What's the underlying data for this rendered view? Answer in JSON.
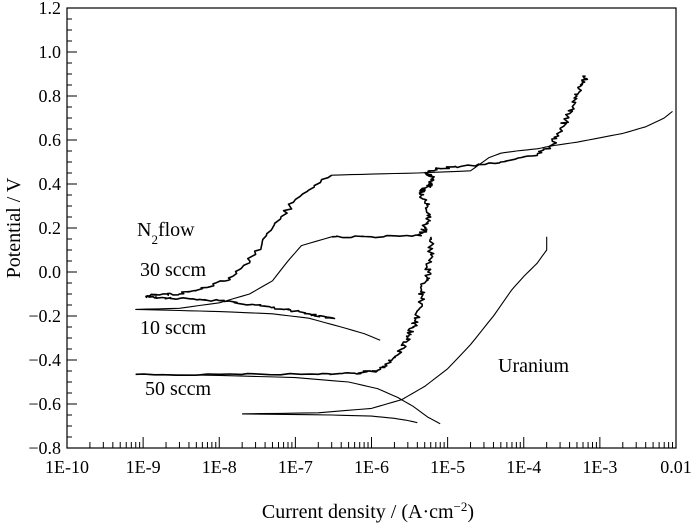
{
  "chart_data": {
    "type": "line",
    "xlabel": "Current density / (A·cm−2)",
    "xlabel_main": "Current density / (A·cm",
    "xlabel_sup": "−2",
    "xlabel_tail": ")",
    "ylabel": "Potential / V",
    "x_scale": "log",
    "xlim": [
      1e-10,
      0.01
    ],
    "ylim": [
      -0.8,
      1.2
    ],
    "x_ticks": [
      "1E-10",
      "1E-9",
      "1E-8",
      "1E-7",
      "1E-6",
      "1E-5",
      "1E-4",
      "1E-3",
      "0.01"
    ],
    "y_ticks": [
      "−0.8",
      "−0.6",
      "−0.4",
      "−0.2",
      "0.0",
      "0.2",
      "0.4",
      "0.6",
      "0.8",
      "1.0",
      "1.2"
    ],
    "grid": false,
    "legend": "none",
    "annotations": {
      "n2flow_main": "N",
      "n2flow_sub": "2",
      "n2flow_tail": "flow",
      "s30": "30 sccm",
      "s10": "10 sccm",
      "s50": "50 sccm",
      "uranium": "Uranium"
    },
    "series": [
      {
        "label_ref": "30 sccm",
        "noisy": true,
        "x": [
          3e-07,
          1e-07,
          5e-08,
          3e-08,
          1.5e-08,
          7e-09,
          3e-09,
          1.5e-09,
          1.1e-09,
          1.5e-09,
          3e-09,
          1e-08,
          3e-08,
          7e-08,
          1.5e-07,
          2.5e-07,
          3.2e-07
        ],
        "y": [
          0.44,
          0.33,
          0.2,
          0.08,
          -0.02,
          -0.07,
          -0.1,
          -0.105,
          -0.11,
          -0.115,
          -0.12,
          -0.13,
          -0.15,
          -0.17,
          -0.19,
          -0.205,
          -0.21
        ]
      },
      {
        "label_ref": "30 sccm high current",
        "noisy": false,
        "x": [
          3e-07,
          1e-06,
          4e-06,
          2e-05,
          3.5e-05,
          5e-05,
          8e-05,
          0.00015,
          0.00025,
          0.0005,
          0.001,
          0.002,
          0.004,
          0.007,
          0.009
        ],
        "y": [
          0.44,
          0.445,
          0.45,
          0.46,
          0.52,
          0.54,
          0.55,
          0.56,
          0.575,
          0.59,
          0.61,
          0.63,
          0.66,
          0.7,
          0.73
        ]
      },
      {
        "label_ref": "10 sccm",
        "noisy": false,
        "x": [
          3e-07,
          1.2e-07,
          8e-08,
          5e-08,
          2.5e-08,
          1e-08,
          3e-09,
          8e-10,
          3e-09,
          1e-08,
          5e-08,
          1.5e-07,
          4e-07,
          8e-07,
          1.3e-06
        ],
        "y": [
          0.16,
          0.12,
          0.05,
          -0.04,
          -0.1,
          -0.14,
          -0.165,
          -0.17,
          -0.175,
          -0.18,
          -0.19,
          -0.21,
          -0.25,
          -0.28,
          -0.31
        ]
      },
      {
        "label_ref": "10 sccm plateau",
        "noisy": true,
        "x": [
          3e-07,
          1e-06,
          4.5e-06,
          5e-06,
          6e-06,
          5.5e-06,
          4.5e-06,
          5e-06,
          6e-06,
          6.5e-06,
          5.5e-06,
          7e-06,
          1.5e-05,
          5e-05,
          0.00015,
          0.00024,
          0.0003,
          0.0004,
          0.0005,
          0.0006,
          0.00065
        ],
        "y": [
          0.16,
          0.16,
          0.165,
          0.2,
          0.25,
          0.3,
          0.35,
          0.38,
          0.4,
          0.42,
          0.45,
          0.47,
          0.48,
          0.5,
          0.53,
          0.58,
          0.65,
          0.72,
          0.8,
          0.86,
          0.89
        ]
      },
      {
        "label_ref": "50 sccm",
        "noisy": true,
        "x": [
          8e-10,
          1e-08,
          2e-07,
          6e-07,
          1.2e-06,
          1.8e-06,
          2.5e-06,
          3e-06,
          3.5e-06,
          4e-06,
          4.5e-06,
          5e-06,
          5.5e-06,
          6e-06,
          6e-06
        ],
        "y": [
          -0.465,
          -0.465,
          -0.465,
          -0.46,
          -0.45,
          -0.41,
          -0.35,
          -0.3,
          -0.25,
          -0.2,
          -0.12,
          -0.05,
          0.0,
          0.08,
          0.16
        ]
      },
      {
        "label_ref": "50 sccm cathodic",
        "noisy": false,
        "x": [
          8e-10,
          1e-08,
          1e-07,
          5e-07,
          1.2e-06,
          2.2e-06,
          3.5e-06,
          5.5e-06,
          8e-06
        ],
        "y": [
          -0.465,
          -0.47,
          -0.48,
          -0.5,
          -0.53,
          -0.57,
          -0.61,
          -0.66,
          -0.69
        ]
      },
      {
        "label_ref": "Uranium",
        "noisy": false,
        "x": [
          2e-08,
          2e-07,
          1e-06,
          2.5e-06,
          5e-06,
          1e-05,
          2e-05,
          4e-05,
          7e-05,
          0.0001,
          0.00015,
          0.0002,
          0.0002
        ],
        "y": [
          -0.645,
          -0.64,
          -0.62,
          -0.58,
          -0.52,
          -0.44,
          -0.33,
          -0.2,
          -0.08,
          -0.02,
          0.04,
          0.1,
          0.16
        ]
      },
      {
        "label_ref": "Uranium cathodic",
        "noisy": false,
        "x": [
          2e-08,
          3e-07,
          1e-06,
          2e-06,
          3e-06,
          4e-06
        ],
        "y": [
          -0.645,
          -0.65,
          -0.655,
          -0.665,
          -0.675,
          -0.685
        ]
      }
    ]
  }
}
